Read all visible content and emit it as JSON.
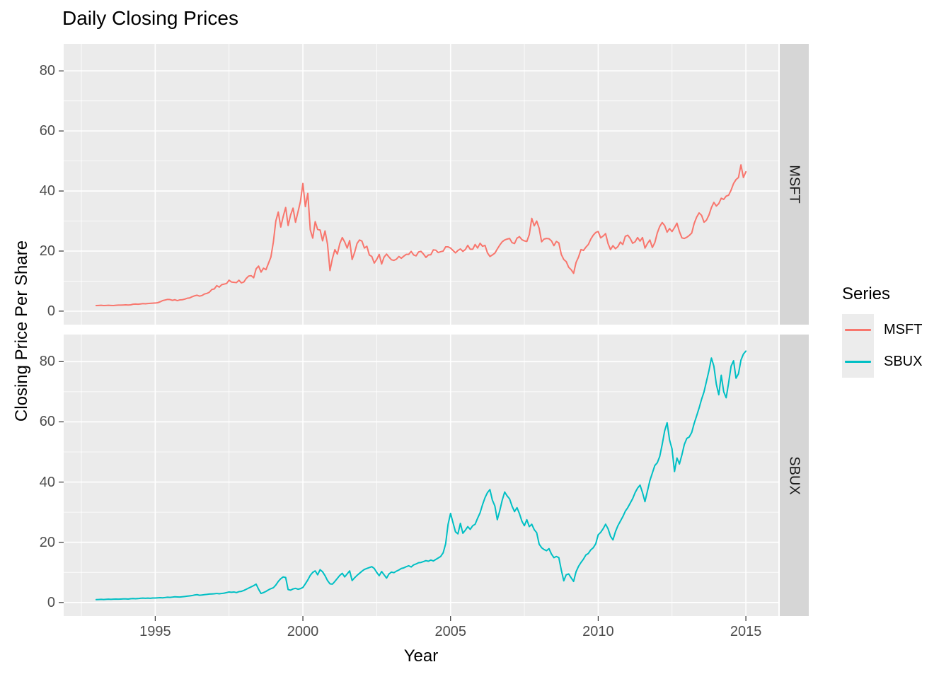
{
  "title": "Daily Closing Prices",
  "legend": {
    "title": "Series",
    "entries": [
      {
        "label": "MSFT",
        "color": "#F8766D"
      },
      {
        "label": "SBUX",
        "color": "#00BFC4"
      }
    ]
  },
  "chart_data": {
    "type": "line",
    "title": "Daily Closing Prices",
    "xlabel": "Year",
    "ylabel": "Closing Price Per Share",
    "facets": [
      "MSFT",
      "SBUX"
    ],
    "grid": true,
    "legend_position": "right",
    "panel_background": "#ebebeb",
    "gridline_color": "#ffffff",
    "x_ticks": [
      1995,
      2000,
      2005,
      2010,
      2015
    ],
    "x_minor": [
      1992.5,
      1997.5,
      2002.5,
      2007.5,
      2012.5
    ],
    "y_ticks": [
      0,
      20,
      40,
      60,
      80
    ],
    "y_minor": [
      10,
      30,
      50,
      70
    ],
    "xlim": [
      1991.9,
      2016.1
    ],
    "ylim": [
      -4.5,
      89
    ],
    "x_start": 1993.0,
    "x_step": 0.0833333,
    "series": [
      {
        "name": "MSFT",
        "facet": "MSFT",
        "color": "#F8766D",
        "values": [
          1.85,
          1.9,
          1.95,
          1.85,
          1.9,
          1.95,
          1.9,
          1.85,
          1.95,
          2.0,
          2.0,
          2.05,
          2.1,
          2.05,
          2.1,
          2.3,
          2.35,
          2.3,
          2.4,
          2.5,
          2.45,
          2.55,
          2.6,
          2.65,
          2.7,
          2.8,
          3.1,
          3.5,
          3.7,
          3.9,
          3.85,
          3.6,
          3.8,
          3.5,
          3.75,
          3.8,
          4.0,
          4.3,
          4.4,
          4.8,
          5.1,
          5.3,
          5.0,
          5.2,
          5.7,
          5.9,
          6.3,
          7.2,
          7.4,
          8.5,
          8.0,
          8.8,
          9.0,
          9.2,
          10.3,
          9.7,
          9.6,
          9.5,
          10.3,
          9.4,
          9.7,
          10.9,
          11.7,
          11.8,
          11.1,
          14.1,
          15.0,
          13.0,
          14.3,
          13.8,
          15.9,
          18.0,
          23.0,
          30.0,
          33.0,
          28.0,
          31.5,
          34.5,
          28.5,
          32.0,
          34.3,
          29.6,
          33.0,
          36.5,
          42.5,
          34.8,
          39.2,
          27.1,
          24.3,
          29.8,
          27.2,
          27.0,
          23.4,
          26.7,
          22.3,
          13.5,
          17.5,
          20.5,
          19.0,
          22.5,
          24.5,
          23.0,
          21.0,
          23.5,
          17.2,
          19.5,
          22.5,
          23.7,
          23.3,
          21.0,
          21.6,
          18.7,
          18.2,
          16.0,
          17.2,
          18.9,
          15.7,
          18.0,
          19.0,
          18.0,
          17.1,
          16.9,
          17.3,
          18.2,
          17.6,
          18.3,
          18.9,
          18.9,
          19.9,
          18.7,
          18.4,
          19.7,
          19.9,
          19.0,
          17.9,
          18.7,
          18.8,
          20.4,
          20.3,
          19.5,
          19.8,
          20.0,
          21.4,
          21.4,
          21.0,
          20.2,
          19.4,
          20.2,
          20.7,
          19.9,
          20.5,
          21.9,
          20.6,
          20.6,
          22.2,
          21.0,
          22.6,
          21.6,
          21.9,
          19.4,
          18.2,
          18.7,
          19.3,
          20.7,
          22.0,
          23.1,
          23.7,
          24.0,
          24.2,
          22.8,
          22.5,
          24.3,
          24.8,
          23.8,
          23.4,
          23.2,
          25.5,
          30.9,
          28.4,
          30.0,
          27.6,
          23.1,
          24.0,
          24.2,
          24.1,
          23.4,
          21.8,
          23.2,
          22.7,
          18.9,
          17.2,
          16.5,
          14.6,
          13.8,
          12.6,
          16.2,
          18.0,
          20.5,
          20.2,
          21.3,
          22.2,
          24.0,
          25.3,
          26.2,
          26.5,
          24.4,
          25.0,
          25.8,
          22.5,
          20.5,
          21.8,
          20.8,
          21.5,
          23.0,
          22.2,
          24.9,
          25.3,
          24.2,
          22.6,
          23.1,
          24.5,
          23.3,
          24.5,
          21.0,
          22.5,
          23.7,
          21.2,
          22.8,
          26.0,
          28.2,
          29.5,
          28.5,
          26.3,
          27.5,
          26.5,
          27.8,
          29.3,
          26.5,
          24.4,
          24.2,
          24.6,
          25.2,
          26.0,
          29.2,
          31.3,
          32.7,
          31.9,
          29.6,
          30.3,
          32.0,
          34.5,
          36.2,
          35.0,
          35.8,
          37.6,
          37.2,
          38.3,
          38.6,
          40.3,
          42.5,
          43.8,
          44.5,
          48.7,
          44.5,
          46.4
        ]
      },
      {
        "name": "SBUX",
        "facet": "SBUX",
        "color": "#00BFC4",
        "values": [
          0.95,
          1.0,
          1.05,
          1.0,
          1.05,
          1.1,
          1.05,
          1.1,
          1.15,
          1.1,
          1.15,
          1.2,
          1.2,
          1.15,
          1.25,
          1.3,
          1.25,
          1.3,
          1.4,
          1.45,
          1.4,
          1.45,
          1.4,
          1.5,
          1.5,
          1.55,
          1.6,
          1.55,
          1.65,
          1.75,
          1.7,
          1.8,
          1.9,
          1.85,
          1.8,
          1.9,
          2.0,
          2.1,
          2.2,
          2.3,
          2.5,
          2.6,
          2.4,
          2.5,
          2.6,
          2.7,
          2.8,
          2.85,
          2.9,
          3.0,
          2.9,
          3.0,
          3.1,
          3.3,
          3.5,
          3.4,
          3.5,
          3.3,
          3.6,
          3.7,
          4.0,
          4.4,
          4.8,
          5.2,
          5.6,
          6.1,
          4.4,
          3.0,
          3.3,
          3.7,
          4.2,
          4.6,
          4.9,
          5.8,
          7.0,
          7.9,
          8.5,
          8.3,
          4.3,
          4.1,
          4.5,
          4.7,
          4.4,
          4.6,
          5.0,
          6.2,
          7.5,
          9.0,
          10.0,
          10.5,
          9.2,
          10.9,
          10.2,
          8.9,
          7.3,
          6.2,
          6.1,
          7.0,
          8.0,
          9.0,
          9.7,
          8.5,
          9.5,
          10.5,
          7.3,
          8.2,
          9.0,
          9.7,
          10.4,
          11.0,
          11.3,
          11.6,
          11.9,
          11.3,
          10.0,
          8.9,
          10.3,
          9.2,
          8.1,
          9.5,
          10.1,
          9.9,
          10.4,
          10.8,
          11.3,
          11.5,
          11.9,
          12.2,
          11.8,
          12.5,
          12.8,
          13.2,
          13.3,
          13.6,
          13.9,
          13.7,
          14.1,
          13.8,
          14.3,
          14.8,
          15.3,
          16.5,
          19.5,
          26.0,
          29.6,
          26.5,
          23.5,
          22.8,
          26.3,
          23.0,
          24.0,
          25.2,
          24.3,
          25.5,
          26.0,
          28.0,
          29.8,
          32.5,
          34.8,
          36.5,
          37.5,
          34.0,
          32.1,
          27.5,
          30.5,
          34.0,
          36.7,
          35.4,
          34.4,
          32.0,
          30.2,
          31.5,
          29.5,
          27.0,
          25.5,
          27.5,
          25.2,
          26.0,
          24.2,
          23.2,
          19.4,
          18.2,
          17.6,
          17.2,
          17.9,
          16.1,
          14.9,
          15.3,
          14.9,
          10.8,
          7.2,
          9.2,
          9.5,
          8.2,
          7.0,
          10.2,
          12.0,
          13.3,
          14.4,
          15.8,
          16.3,
          17.5,
          18.2,
          19.5,
          22.5,
          23.3,
          24.5,
          26.0,
          24.5,
          22.0,
          20.8,
          23.5,
          25.5,
          27.0,
          28.5,
          30.3,
          31.5,
          33.0,
          34.5,
          36.5,
          38.0,
          39.0,
          36.5,
          33.5,
          37.0,
          40.5,
          43.0,
          45.5,
          46.4,
          48.5,
          52.5,
          57.0,
          59.7,
          54.0,
          51.0,
          43.5,
          48.0,
          46.0,
          49.0,
          52.5,
          54.5,
          55.0,
          56.5,
          59.5,
          62.0,
          64.6,
          67.5,
          70.0,
          73.5,
          77.0,
          81.2,
          78.5,
          72.5,
          69.0,
          75.5,
          70.0,
          68.0,
          73.0,
          78.5,
          80.3,
          74.5,
          76.0,
          80.5,
          82.5,
          83.5
        ]
      }
    ]
  }
}
